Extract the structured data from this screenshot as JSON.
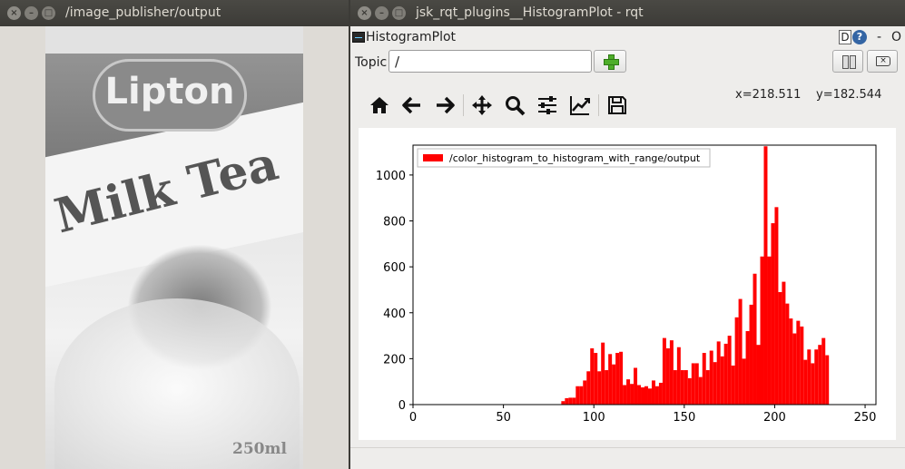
{
  "left_window": {
    "title": "/image_publisher/output",
    "image": {
      "brand": "Lipton",
      "product": "Milk Tea",
      "volume": "250ml"
    }
  },
  "right_window": {
    "title": "jsk_rqt_plugins__HistogramPlot - rqt",
    "plugin_name": "HistogramPlot",
    "help_d": "D",
    "help_q": "?",
    "minimize": "-",
    "restore": "O",
    "topic_label": "Topic",
    "topic_value": "/",
    "toolbar": [
      "home-icon",
      "back-arrow-icon",
      "forward-arrow-icon",
      "pan-move-icon",
      "zoom-icon",
      "subplots-config-icon",
      "axes-edit-icon",
      "save-icon"
    ],
    "coord_x": "x=218.511",
    "coord_y": "y=182.544"
  },
  "chart_data": {
    "type": "bar",
    "legend": "/color_histogram_to_histogram_with_range/output",
    "legend_position": "top-left",
    "bar_color": "#ff0000",
    "xlim": [
      0,
      256
    ],
    "ylim": [
      0,
      1130
    ],
    "xticks": [
      0,
      50,
      100,
      150,
      200,
      250
    ],
    "yticks": [
      0,
      200,
      400,
      600,
      800,
      1000
    ],
    "grid": false,
    "bin_width": 2,
    "bin_starts": [
      82,
      84,
      86,
      88,
      90,
      92,
      94,
      96,
      98,
      100,
      102,
      104,
      106,
      108,
      110,
      112,
      114,
      116,
      118,
      120,
      122,
      124,
      126,
      128,
      130,
      132,
      134,
      136,
      138,
      140,
      142,
      144,
      146,
      148,
      150,
      152,
      154,
      156,
      158,
      160,
      162,
      164,
      166,
      168,
      170,
      172,
      174,
      176,
      178,
      180,
      182,
      184,
      186,
      188,
      190,
      192,
      194,
      196,
      198,
      200,
      202,
      204,
      206,
      208,
      210,
      212,
      214,
      216,
      218,
      220,
      222,
      224,
      226,
      228,
      230,
      232,
      234,
      236,
      238,
      240,
      242,
      244,
      246,
      248,
      250,
      252,
      254
    ],
    "values": [
      15,
      28,
      30,
      30,
      80,
      80,
      105,
      145,
      245,
      225,
      145,
      270,
      150,
      220,
      175,
      225,
      230,
      85,
      110,
      90,
      160,
      85,
      75,
      80,
      70,
      105,
      80,
      95,
      290,
      245,
      280,
      150,
      250,
      150,
      150,
      115,
      180,
      180,
      120,
      225,
      150,
      235,
      185,
      275,
      210,
      265,
      300,
      170,
      380,
      460,
      200,
      320,
      435,
      570,
      260,
      645,
      1125,
      645,
      790,
      860,
      490,
      535,
      440,
      375,
      310,
      365,
      340,
      195,
      240,
      180,
      240,
      260,
      290,
      215,
      0,
      0,
      0,
      0,
      0,
      0,
      0,
      0,
      0,
      0,
      0,
      0,
      0
    ]
  }
}
